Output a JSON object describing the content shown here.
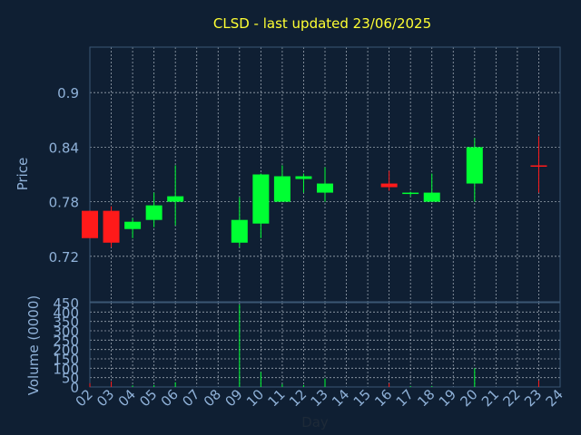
{
  "chart_data": [
    {
      "type": "candlestick",
      "title": "CLSD - last updated 23/06/2025",
      "xlabel": "",
      "ylabel": "Price",
      "ylim": [
        0.67,
        0.95
      ],
      "y_ticks": [
        "0.9",
        "0.84",
        "0.78",
        "0.72"
      ],
      "y_tick_values": [
        0.9,
        0.84,
        0.78,
        0.72
      ],
      "grid": true,
      "x_ticks": [
        "02",
        "03",
        "04",
        "05",
        "06",
        "07",
        "08",
        "09",
        "10",
        "11",
        "12",
        "13",
        "14",
        "15",
        "16",
        "17",
        "18",
        "19",
        "20",
        "21",
        "22",
        "23",
        "24"
      ],
      "x_tick_values": [
        2,
        3,
        4,
        5,
        6,
        7,
        8,
        9,
        10,
        11,
        12,
        13,
        14,
        15,
        16,
        17,
        18,
        19,
        20,
        21,
        22,
        23,
        24
      ],
      "up_color": "#00ff33",
      "down_color": "#ff1a1a",
      "series": [
        {
          "points": [
            {
              "day": 2,
              "open": 0.77,
              "high": 0.77,
              "low": 0.74,
              "close": 0.74
            },
            {
              "day": 3,
              "open": 0.77,
              "high": 0.775,
              "low": 0.73,
              "close": 0.735
            },
            {
              "day": 4,
              "open": 0.75,
              "high": 0.762,
              "low": 0.74,
              "close": 0.758
            },
            {
              "day": 5,
              "open": 0.76,
              "high": 0.79,
              "low": 0.752,
              "close": 0.776
            },
            {
              "day": 6,
              "open": 0.78,
              "high": 0.82,
              "low": 0.754,
              "close": 0.786
            },
            {
              "day": 9,
              "open": 0.735,
              "high": 0.785,
              "low": 0.73,
              "close": 0.76
            },
            {
              "day": 10,
              "open": 0.756,
              "high": 0.811,
              "low": 0.74,
              "close": 0.81
            },
            {
              "day": 11,
              "open": 0.78,
              "high": 0.82,
              "low": 0.78,
              "close": 0.808
            },
            {
              "day": 12,
              "open": 0.805,
              "high": 0.811,
              "low": 0.79,
              "close": 0.808
            },
            {
              "day": 13,
              "open": 0.79,
              "high": 0.818,
              "low": 0.78,
              "close": 0.8
            },
            {
              "day": 16,
              "open": 0.8,
              "high": 0.814,
              "low": 0.792,
              "close": 0.796
            },
            {
              "day": 17,
              "open": 0.789,
              "high": 0.791,
              "low": 0.786,
              "close": 0.79
            },
            {
              "day": 18,
              "open": 0.78,
              "high": 0.811,
              "low": 0.78,
              "close": 0.79
            },
            {
              "day": 20,
              "open": 0.8,
              "high": 0.85,
              "low": 0.78,
              "close": 0.84
            },
            {
              "day": 23,
              "open": 0.82,
              "high": 0.852,
              "low": 0.79,
              "close": 0.819
            }
          ]
        }
      ]
    },
    {
      "type": "bar",
      "xlabel": "Day",
      "ylabel": "Volume (0000)",
      "ylim": [
        0,
        450
      ],
      "y_ticks": [
        "450",
        "400",
        "350",
        "300",
        "250",
        "200",
        "150",
        "100",
        "50",
        "0"
      ],
      "y_tick_values": [
        450,
        400,
        350,
        300,
        250,
        200,
        150,
        100,
        50,
        0
      ],
      "grid": true,
      "x_ticks": [
        "02",
        "03",
        "04",
        "05",
        "06",
        "07",
        "08",
        "09",
        "10",
        "11",
        "12",
        "13",
        "14",
        "15",
        "16",
        "17",
        "18",
        "19",
        "20",
        "21",
        "22",
        "23",
        "24"
      ],
      "x_tick_values": [
        2,
        3,
        4,
        5,
        6,
        7,
        8,
        9,
        10,
        11,
        12,
        13,
        14,
        15,
        16,
        17,
        18,
        19,
        20,
        21,
        22,
        23,
        24
      ],
      "series": [
        {
          "points": [
            {
              "day": 2,
              "value": 20,
              "color": "#ff1a1a"
            },
            {
              "day": 3,
              "value": 30,
              "color": "#ff1a1a"
            },
            {
              "day": 4,
              "value": 8,
              "color": "#00ff33"
            },
            {
              "day": 5,
              "value": 10,
              "color": "#00ff33"
            },
            {
              "day": 6,
              "value": 25,
              "color": "#00ff33"
            },
            {
              "day": 9,
              "value": 440,
              "color": "#00ff33"
            },
            {
              "day": 10,
              "value": 80,
              "color": "#00ff33"
            },
            {
              "day": 11,
              "value": 15,
              "color": "#00ff33"
            },
            {
              "day": 12,
              "value": 10,
              "color": "#00ff33"
            },
            {
              "day": 13,
              "value": 45,
              "color": "#00ff33"
            },
            {
              "day": 16,
              "value": 20,
              "color": "#ff1a1a"
            },
            {
              "day": 17,
              "value": 5,
              "color": "#00ff33"
            },
            {
              "day": 18,
              "value": 5,
              "color": "#00ff33"
            },
            {
              "day": 20,
              "value": 100,
              "color": "#00ff33"
            },
            {
              "day": 23,
              "value": 35,
              "color": "#ff1a1a"
            }
          ]
        }
      ]
    }
  ]
}
